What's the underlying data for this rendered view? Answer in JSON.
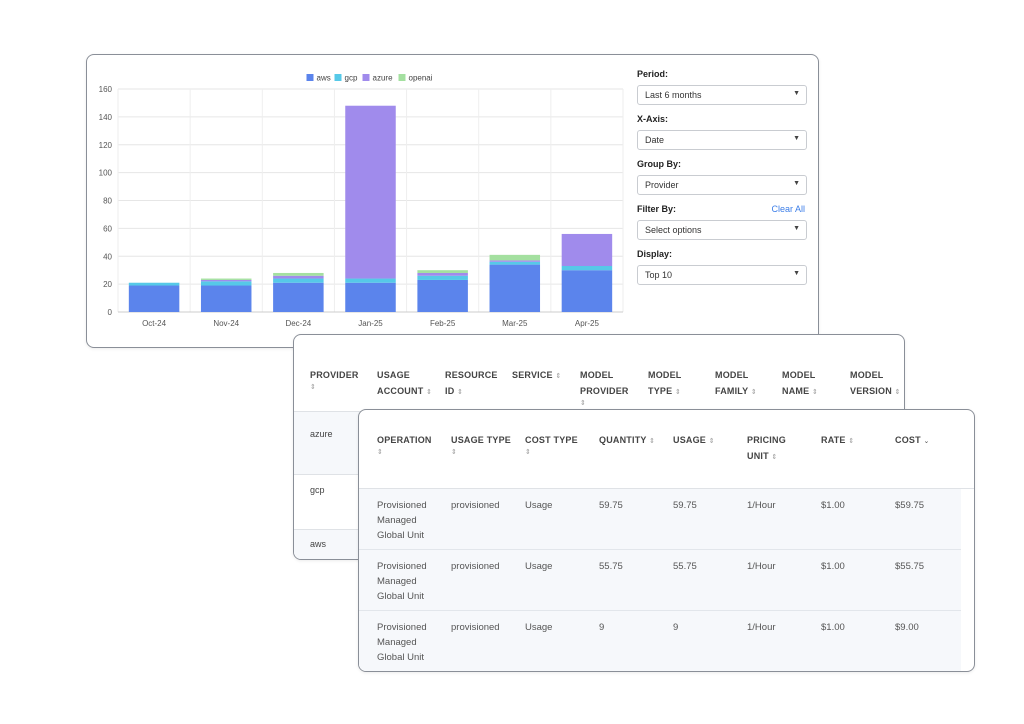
{
  "chart_data": {
    "type": "bar",
    "stacked": true,
    "categories": [
      "Oct-24",
      "Nov-24",
      "Dec-24",
      "Jan-25",
      "Feb-25",
      "Mar-25",
      "Apr-25"
    ],
    "series": [
      {
        "name": "aws",
        "color": "#5b84ec",
        "values": [
          19,
          19,
          21,
          21,
          23,
          34,
          30
        ]
      },
      {
        "name": "gcp",
        "color": "#56c9e8",
        "values": [
          2,
          3,
          3,
          3,
          3,
          2,
          3
        ]
      },
      {
        "name": "azure",
        "color": "#a08bec",
        "values": [
          0,
          1,
          2,
          124,
          2,
          1,
          23
        ]
      },
      {
        "name": "openai",
        "color": "#a4e0a0",
        "values": [
          0,
          1,
          2,
          0,
          2,
          4,
          0
        ]
      }
    ],
    "ylim": [
      0,
      160
    ],
    "yticks": [
      0,
      20,
      40,
      60,
      80,
      100,
      120,
      140,
      160
    ],
    "grid": true,
    "legend_position": "top"
  },
  "controls": {
    "period": {
      "label": "Period:",
      "value": "Last 6 months"
    },
    "xaxis": {
      "label": "X-Axis:",
      "value": "Date"
    },
    "group_by": {
      "label": "Group By:",
      "value": "Provider"
    },
    "filter_by": {
      "label": "Filter By:",
      "value": "Select options",
      "clear_label": "Clear All"
    },
    "display": {
      "label": "Display:",
      "value": "Top 10"
    }
  },
  "table1": {
    "headers": [
      [
        "PROVIDER"
      ],
      [
        "USAGE",
        "ACCOUNT"
      ],
      [
        "RESOURCE",
        "ID"
      ],
      [
        "SERVICE"
      ],
      [
        "MODEL",
        "PROVIDER"
      ],
      [
        "MODEL",
        "TYPE"
      ],
      [
        "MODEL",
        "FAMILY"
      ],
      [
        "MODEL",
        "NAME"
      ],
      [
        "MODEL",
        "VERSION"
      ]
    ],
    "rows": [
      "azure",
      "gcp",
      "aws"
    ]
  },
  "table2": {
    "headers": {
      "operation": "OPERATION",
      "usage_type": "USAGE TYPE",
      "cost_type": "COST TYPE",
      "quantity": "QUANTITY",
      "usage": "USAGE",
      "pricing_unit_1": "PRICING",
      "pricing_unit_2": "UNIT",
      "rate": "RATE",
      "cost": "COST"
    },
    "rows": [
      {
        "operation": [
          "Provisioned",
          "Managed",
          "Global Unit"
        ],
        "usage_type": "provisioned",
        "cost_type": "Usage",
        "quantity": "59.75",
        "usage": "59.75",
        "pricing_unit": "1/Hour",
        "rate": "$1.00",
        "cost": "$59.75"
      },
      {
        "operation": [
          "Provisioned",
          "Managed",
          "Global Unit"
        ],
        "usage_type": "provisioned",
        "cost_type": "Usage",
        "quantity": "55.75",
        "usage": "55.75",
        "pricing_unit": "1/Hour",
        "rate": "$1.00",
        "cost": "$55.75"
      },
      {
        "operation": [
          "Provisioned",
          "Managed",
          "Global Unit"
        ],
        "usage_type": "provisioned",
        "cost_type": "Usage",
        "quantity": "9",
        "usage": "9",
        "pricing_unit": "1/Hour",
        "rate": "$1.00",
        "cost": "$9.00"
      }
    ]
  }
}
